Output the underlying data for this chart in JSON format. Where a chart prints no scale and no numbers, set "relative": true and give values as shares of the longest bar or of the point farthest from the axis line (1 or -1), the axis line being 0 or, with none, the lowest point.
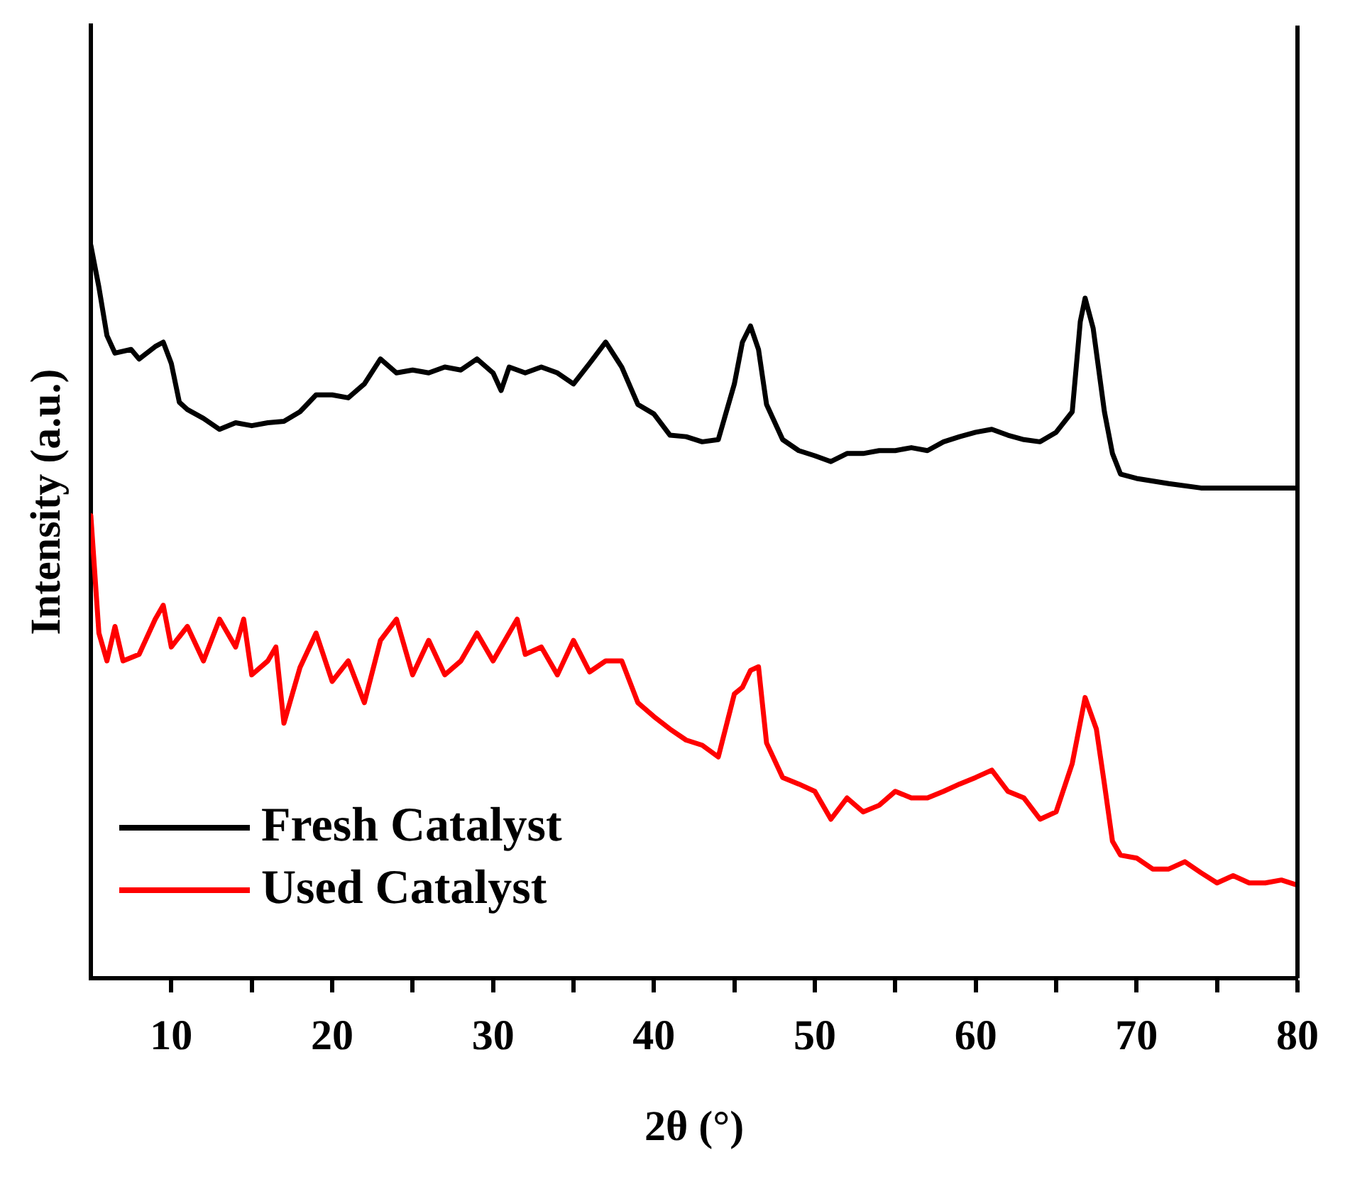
{
  "chart_data": {
    "type": "line",
    "xlabel": "2θ (°)",
    "ylabel": "Intensity (a.u.)",
    "relative": true,
    "tick_labels": "x",
    "legend": "bottom left",
    "marker": "none",
    "line_style": "solid",
    "grid": false,
    "xlim": [
      5,
      80
    ],
    "xticks": [
      10,
      {
        "value": 15,
        "label": null
      },
      20,
      {
        "value": 25,
        "label": null
      },
      30,
      {
        "value": 35,
        "label": null
      },
      40,
      {
        "value": 45,
        "label": null
      },
      50,
      {
        "value": 55,
        "label": null
      },
      60,
      {
        "value": 65,
        "label": null
      },
      70,
      {
        "value": 75,
        "label": null
      },
      80
    ],
    "series": [
      {
        "name": "Fresh Catalyst",
        "color": "#000000",
        "x": [
          5,
          5.5,
          6,
          6.5,
          7.5,
          8,
          9,
          9.5,
          10,
          10.5,
          11,
          12,
          13,
          14,
          15,
          16,
          17,
          18,
          19,
          20,
          21,
          22,
          23,
          24,
          25,
          26,
          27,
          28,
          29,
          30,
          30.5,
          31,
          32,
          33,
          34,
          35,
          36,
          37,
          38,
          39,
          40,
          41,
          42,
          43,
          44,
          45,
          45.5,
          46,
          46.5,
          47,
          48,
          49,
          50,
          51,
          52,
          53,
          54,
          55,
          56,
          57,
          58,
          59,
          60,
          61,
          62,
          63,
          64,
          65,
          66,
          66.5,
          66.8,
          67.3,
          68,
          68.5,
          69,
          70,
          72,
          74,
          76,
          78,
          80
        ],
        "values": [
          1.0,
          0.943,
          0.877,
          0.853,
          0.858,
          0.845,
          0.862,
          0.868,
          0.839,
          0.786,
          0.776,
          0.764,
          0.749,
          0.758,
          0.754,
          0.758,
          0.76,
          0.773,
          0.796,
          0.796,
          0.792,
          0.811,
          0.845,
          0.826,
          0.83,
          0.826,
          0.834,
          0.83,
          0.845,
          0.826,
          0.802,
          0.834,
          0.826,
          0.834,
          0.826,
          0.811,
          0.839,
          0.868,
          0.834,
          0.783,
          0.77,
          0.741,
          0.739,
          0.732,
          0.735,
          0.811,
          0.868,
          0.89,
          0.858,
          0.783,
          0.735,
          0.72,
          0.713,
          0.705,
          0.716,
          0.716,
          0.72,
          0.72,
          0.724,
          0.72,
          0.732,
          0.739,
          0.745,
          0.749,
          0.741,
          0.735,
          0.732,
          0.745,
          0.773,
          0.896,
          0.928,
          0.887,
          0.773,
          0.716,
          0.688,
          0.682,
          0.675,
          0.669,
          0.669,
          0.669,
          0.669
        ]
      },
      {
        "name": "Used Catalyst",
        "color": "#ff0000",
        "x": [
          5,
          5.5,
          6,
          6.5,
          7,
          8,
          9,
          9.5,
          10,
          11,
          12,
          13,
          14,
          14.5,
          15,
          16,
          16.5,
          17,
          18,
          19,
          20,
          21,
          22,
          23,
          24,
          25,
          26,
          27,
          28,
          29,
          30,
          31,
          31.5,
          32,
          33,
          34,
          35,
          36,
          37,
          38,
          39,
          40,
          41,
          42,
          43,
          44,
          45,
          45.5,
          46,
          46.5,
          47,
          48,
          49,
          50,
          51,
          52,
          53,
          54,
          55,
          56,
          57,
          58,
          59,
          60,
          61,
          62,
          63,
          64,
          65,
          66,
          66.8,
          67.5,
          68,
          68.5,
          69,
          70,
          71,
          72,
          73,
          74,
          75,
          76,
          77,
          78,
          79,
          80
        ],
        "values": [
          0.631,
          0.471,
          0.433,
          0.48,
          0.433,
          0.442,
          0.49,
          0.509,
          0.452,
          0.48,
          0.433,
          0.49,
          0.452,
          0.49,
          0.414,
          0.433,
          0.452,
          0.348,
          0.424,
          0.471,
          0.405,
          0.433,
          0.376,
          0.461,
          0.49,
          0.414,
          0.461,
          0.414,
          0.433,
          0.471,
          0.433,
          0.471,
          0.49,
          0.442,
          0.452,
          0.414,
          0.461,
          0.418,
          0.433,
          0.433,
          0.376,
          0.357,
          0.34,
          0.325,
          0.318,
          0.302,
          0.388,
          0.397,
          0.42,
          0.425,
          0.321,
          0.274,
          0.265,
          0.255,
          0.217,
          0.246,
          0.227,
          0.236,
          0.255,
          0.246,
          0.246,
          0.255,
          0.265,
          0.274,
          0.284,
          0.255,
          0.246,
          0.217,
          0.227,
          0.293,
          0.383,
          0.34,
          0.265,
          0.187,
          0.168,
          0.164,
          0.149,
          0.149,
          0.159,
          0.144,
          0.13,
          0.14,
          0.13,
          0.13,
          0.134,
          0.127
        ]
      }
    ]
  }
}
